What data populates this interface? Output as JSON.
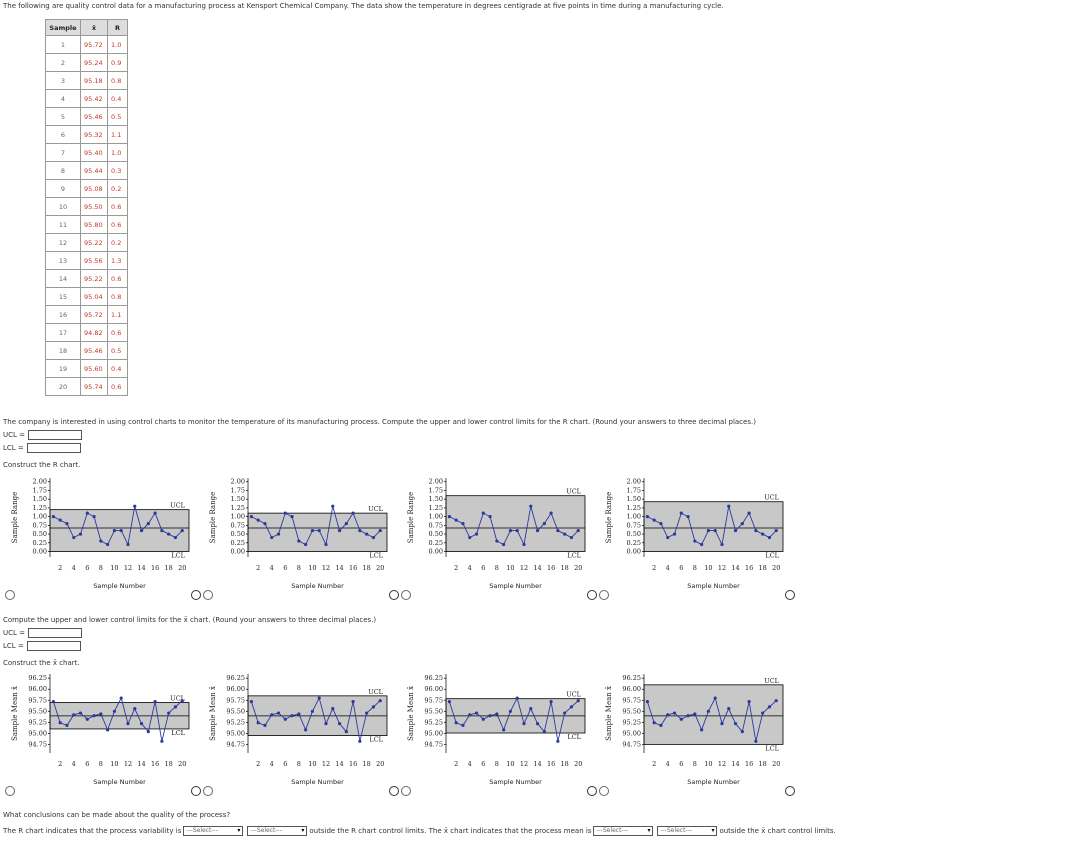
{
  "intro": "The following are quality control data for a manufacturing process at Kensport Chemical Company. The data show the temperature in degrees centigrade at five points in time during a manufacturing cycle.",
  "table": {
    "header": [
      "Sample",
      "x̄",
      "R"
    ],
    "rows": [
      [
        "1",
        "95.72",
        "1.0"
      ],
      [
        "2",
        "95.24",
        "0.9"
      ],
      [
        "3",
        "95.18",
        "0.8"
      ],
      [
        "4",
        "95.42",
        "0.4"
      ],
      [
        "5",
        "95.46",
        "0.5"
      ],
      [
        "6",
        "95.32",
        "1.1"
      ],
      [
        "7",
        "95.40",
        "1.0"
      ],
      [
        "8",
        "95.44",
        "0.3"
      ],
      [
        "9",
        "95.08",
        "0.2"
      ],
      [
        "10",
        "95.50",
        "0.6"
      ],
      [
        "11",
        "95.80",
        "0.6"
      ],
      [
        "12",
        "95.22",
        "0.2"
      ],
      [
        "13",
        "95.56",
        "1.3"
      ],
      [
        "14",
        "95.22",
        "0.6"
      ],
      [
        "15",
        "95.04",
        "0.8"
      ],
      [
        "16",
        "95.72",
        "1.1"
      ],
      [
        "17",
        "94.82",
        "0.6"
      ],
      [
        "18",
        "95.46",
        "0.5"
      ],
      [
        "19",
        "95.60",
        "0.4"
      ],
      [
        "20",
        "95.74",
        "0.6"
      ]
    ]
  },
  "r_section": {
    "prompt": "The company is interested in using control charts to monitor the temperature of its manufacturing process. Compute the upper and lower control limits for the R chart. (Round your answers to three decimal places.)",
    "ucl_label": "UCL =",
    "lcl_label": "LCL =",
    "construct": "Construct the R chart.",
    "chart": {
      "y_label": "Sample Range",
      "x_label": "Sample Number",
      "ucl_text": "UCL",
      "lcl_text": "LCL",
      "ylim": [
        -0.1,
        2.05
      ],
      "yticks": [
        {
          "value": 0,
          "label": "0.00"
        },
        0.25,
        {
          "value": 0.5,
          "label": "0.50"
        },
        0.75,
        {
          "value": 1,
          "label": "1.00"
        },
        1.25,
        {
          "value": 1.5,
          "label": "1.50"
        },
        1.75,
        {
          "value": 2,
          "label": "2.00"
        }
      ],
      "xlim": [
        0.5,
        21
      ],
      "xticks": [
        2,
        4,
        6,
        8,
        10,
        12,
        14,
        16,
        18,
        20
      ],
      "line_color": "#2b3a9c",
      "band_color": "#c8c8c8",
      "options": [
        {
          "ucl": 1.2,
          "lcl": 0,
          "center": 0.675
        },
        {
          "ucl": 1.1,
          "lcl": 0,
          "center": 0.675
        },
        {
          "ucl": 1.6,
          "lcl": 0,
          "center": 0.675
        },
        {
          "ucl": 1.427,
          "lcl": 0,
          "center": 0.675
        }
      ]
    }
  },
  "x_section": {
    "prompt": "Compute the upper and lower control limits for the x̄ chart. (Round your answers to three decimal places.)",
    "ucl_label": "UCL =",
    "lcl_label": "LCL =",
    "construct": "Construct the x̄ chart.",
    "chart": {
      "y_label": "Sample Mean x̄",
      "x_label": "Sample Number",
      "ucl_text": "UCL",
      "lcl_text": "LCL",
      "ylim": [
        94.6,
        96.3
      ],
      "yticks": [
        94.75,
        {
          "value": 95,
          "label": "95.00"
        },
        95.25,
        {
          "value": 95.5,
          "label": "95.50"
        },
        95.75,
        {
          "value": 96,
          "label": "96.00"
        },
        96.25
      ],
      "xlim": [
        0.5,
        21
      ],
      "xticks": [
        2,
        4,
        6,
        8,
        10,
        12,
        14,
        16,
        18,
        20
      ],
      "line_color": "#2b3a9c",
      "band_color": "#c8c8c8",
      "options": [
        {
          "ucl": 95.7,
          "lcl": 95.1,
          "center": 95.397
        },
        {
          "ucl": 95.85,
          "lcl": 94.95,
          "center": 95.397
        },
        {
          "ucl": 95.786,
          "lcl": 95.008,
          "center": 95.397
        },
        {
          "ucl": 96.1,
          "lcl": 94.75,
          "center": 95.397
        }
      ]
    }
  },
  "conclusion": {
    "question": "What conclusions can be made about the quality of the process?",
    "part1": "The R chart indicates that the process variability is",
    "select1": "---Select---",
    "select2": "---Select---",
    "part2": "outside the R chart control limits. The x̄ chart indicates that the process mean is",
    "select3": "---Select---",
    "select4": "---Select---",
    "part3": "outside the x̄ chart control limits."
  }
}
